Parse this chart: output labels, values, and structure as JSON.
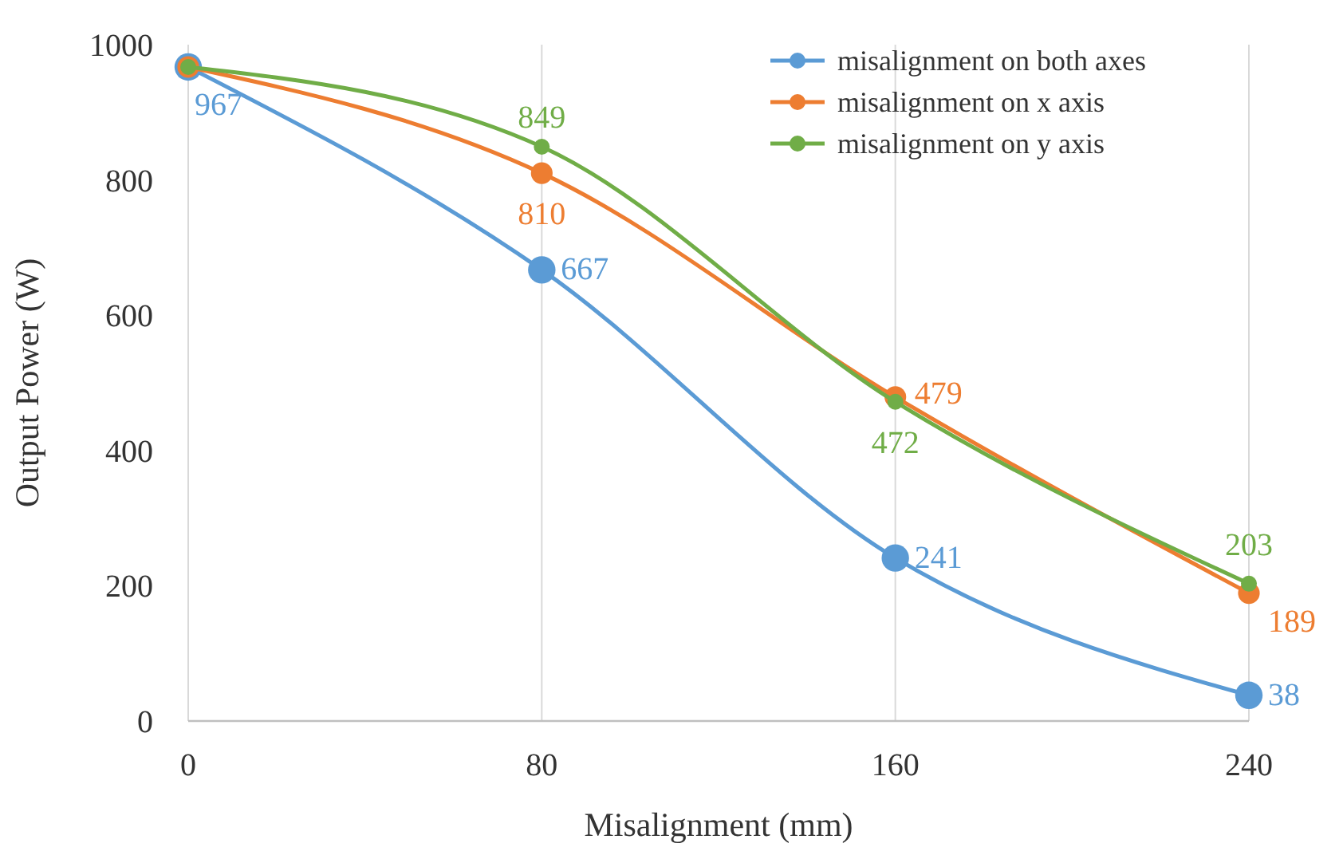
{
  "chart_data": {
    "type": "line",
    "xlabel": "Misalignment (mm)",
    "ylabel": "Output Power (W)",
    "x": [
      0,
      80,
      160,
      240
    ],
    "xlim": [
      0,
      240
    ],
    "xticks": [
      0,
      80,
      160,
      240
    ],
    "ylim": [
      0,
      1000
    ],
    "yticks": [
      0,
      200,
      400,
      600,
      800,
      1000
    ],
    "grid": "x",
    "legend": "top right",
    "marker": "circle",
    "line_style": "solid",
    "series": [
      {
        "name": "misalignment on both axes",
        "color": "#5b9bd5",
        "values": [
          967,
          667,
          241,
          38
        ],
        "value_labels": [
          "967",
          "667",
          "241",
          "38"
        ]
      },
      {
        "name": "misalignment on x axis",
        "color": "#ed7d31",
        "values": [
          967,
          810,
          479,
          189
        ],
        "value_labels": [
          null,
          "810",
          "479",
          "189"
        ]
      },
      {
        "name": "misalignment on y axis",
        "color": "#70ad47",
        "values": [
          967,
          849,
          472,
          203
        ],
        "value_labels": [
          null,
          "849",
          "472",
          "203"
        ]
      }
    ]
  }
}
